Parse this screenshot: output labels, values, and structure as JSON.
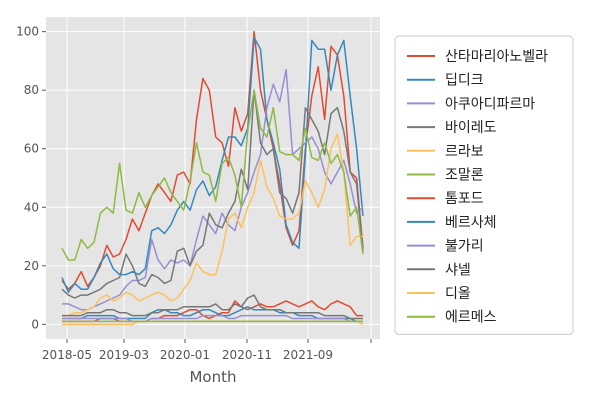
{
  "chart_data": {
    "type": "line",
    "xlabel": "Month",
    "ylabel": "",
    "ylim": [
      -5,
      105
    ],
    "yticks": [
      0,
      20,
      40,
      60,
      80,
      100
    ],
    "x_tick_labels": [
      "2018-05",
      "2019-03",
      "2020-01",
      "2020-11",
      "2021-09",
      ""
    ],
    "grid": true,
    "legend_position": "right",
    "background": "#e5e5e5",
    "x_start": "2018-05",
    "x_end": "2022-06",
    "series": [
      {
        "name": "산타마리아노벨라",
        "color": "#e24a33",
        "values": [
          15,
          12,
          14,
          18,
          13,
          16,
          20,
          27,
          23,
          24,
          29,
          36,
          32,
          38,
          44,
          48,
          45,
          42,
          51,
          52,
          48,
          70,
          84,
          80,
          64,
          62,
          54,
          74,
          66,
          72,
          100,
          80,
          70,
          60,
          48,
          33,
          27,
          32,
          60,
          78,
          88,
          70,
          95,
          92,
          78,
          52,
          50,
          26
        ]
      },
      {
        "name": "딥디크",
        "color": "#348abd",
        "values": [
          16,
          11,
          14,
          12,
          12,
          16,
          21,
          24,
          19,
          17,
          17,
          18,
          17,
          19,
          32,
          33,
          31,
          34,
          39,
          42,
          39,
          46,
          49,
          44,
          47,
          56,
          64,
          64,
          61,
          67,
          98,
          94,
          70,
          62,
          53,
          34,
          28,
          26,
          58,
          97,
          94,
          94,
          80,
          92,
          97,
          78,
          60,
          37
        ]
      },
      {
        "name": "아쿠아디파르마",
        "color": "#988ed5",
        "values": [
          7,
          7,
          6,
          5,
          5,
          6,
          7,
          8,
          9,
          10,
          13,
          15,
          15,
          16,
          29,
          22,
          19,
          22,
          21,
          22,
          20,
          29,
          37,
          34,
          31,
          38,
          34,
          32,
          40,
          45,
          52,
          58,
          74,
          82,
          76,
          87,
          58,
          60,
          62,
          64,
          60,
          52,
          48,
          52,
          56,
          48,
          38,
          40
        ]
      },
      {
        "name": "바이레도",
        "color": "#777777",
        "values": [
          12,
          10,
          9,
          10,
          10,
          11,
          12,
          14,
          15,
          16,
          24,
          20,
          14,
          13,
          17,
          16,
          14,
          15,
          25,
          26,
          20,
          25,
          27,
          38,
          34,
          33,
          38,
          42,
          53,
          46,
          80,
          62,
          58,
          60,
          45,
          43,
          38,
          45,
          74,
          70,
          66,
          58,
          72,
          74,
          66,
          52,
          48,
          25
        ]
      },
      {
        "name": "르라보",
        "color": "#fbc15e",
        "values": [
          3,
          3,
          4,
          4,
          5,
          6,
          9,
          10,
          8,
          9,
          11,
          10,
          8,
          9,
          10,
          11,
          10,
          8,
          9,
          12,
          15,
          21,
          18,
          17,
          17,
          25,
          36,
          38,
          33,
          40,
          45,
          56,
          47,
          43,
          37,
          36,
          36,
          38,
          49,
          45,
          40,
          46,
          60,
          65,
          52,
          27,
          30,
          30
        ]
      },
      {
        "name": "조말론",
        "color": "#8eba42",
        "values": [
          26,
          22,
          22,
          29,
          26,
          28,
          38,
          40,
          38,
          55,
          39,
          38,
          45,
          40,
          44,
          47,
          50,
          45,
          42,
          39,
          49,
          62,
          52,
          51,
          42,
          55,
          57,
          51,
          40,
          66,
          80,
          67,
          64,
          74,
          59,
          58,
          58,
          56,
          67,
          57,
          56,
          62,
          55,
          58,
          52,
          37,
          40,
          24
        ]
      },
      {
        "name": "톰포드",
        "color": "#e24a33",
        "values": [
          1,
          1,
          1,
          1,
          1,
          1,
          2,
          2,
          2,
          1,
          1,
          1,
          1,
          1,
          2,
          2,
          3,
          3,
          3,
          4,
          5,
          5,
          3,
          2,
          3,
          4,
          4,
          8,
          6,
          5,
          6,
          7,
          6,
          6,
          7,
          8,
          7,
          6,
          7,
          8,
          6,
          5,
          7,
          8,
          7,
          6,
          3,
          3
        ]
      },
      {
        "name": "베르사체",
        "color": "#348abd",
        "values": [
          2,
          2,
          2,
          2,
          3,
          3,
          3,
          3,
          3,
          2,
          2,
          2,
          2,
          2,
          4,
          5,
          5,
          4,
          4,
          3,
          3,
          4,
          5,
          5,
          4,
          3,
          3,
          4,
          5,
          6,
          5,
          5,
          5,
          5,
          4,
          4,
          4,
          3,
          3,
          3,
          2,
          2,
          2,
          2,
          2,
          2,
          1,
          1
        ]
      },
      {
        "name": "불가리",
        "color": "#988ed5",
        "values": [
          2,
          2,
          2,
          2,
          2,
          2,
          2,
          2,
          2,
          2,
          2,
          1,
          1,
          1,
          2,
          2,
          2,
          2,
          2,
          2,
          2,
          2,
          3,
          3,
          3,
          3,
          2,
          2,
          3,
          3,
          3,
          3,
          3,
          3,
          3,
          3,
          2,
          2,
          2,
          2,
          2,
          2,
          2,
          2,
          2,
          1,
          1,
          1
        ]
      },
      {
        "name": "샤넬",
        "color": "#777777",
        "values": [
          3,
          3,
          3,
          3,
          4,
          4,
          4,
          5,
          5,
          4,
          4,
          3,
          3,
          3,
          4,
          4,
          5,
          5,
          5,
          6,
          6,
          6,
          6,
          6,
          7,
          5,
          5,
          7,
          6,
          9,
          10,
          6,
          5,
          5,
          5,
          4,
          4,
          4,
          4,
          4,
          4,
          3,
          3,
          3,
          3,
          2,
          2,
          2
        ]
      },
      {
        "name": "디올",
        "color": "#fbc15e",
        "values": [
          0,
          0,
          0,
          0,
          0,
          0,
          0,
          0,
          0,
          0,
          0,
          0,
          1,
          1,
          1,
          1,
          1,
          1,
          1,
          1,
          1,
          1,
          1,
          1,
          1,
          1,
          1,
          1,
          1,
          1,
          1,
          1,
          1,
          1,
          1,
          1,
          1,
          1,
          1,
          1,
          1,
          1,
          1,
          1,
          1,
          1,
          1,
          0
        ]
      },
      {
        "name": "에르메스",
        "color": "#8eba42",
        "values": [
          1,
          1,
          1,
          1,
          1,
          1,
          1,
          1,
          1,
          1,
          1,
          1,
          1,
          1,
          1,
          1,
          1,
          1,
          1,
          1,
          1,
          1,
          1,
          1,
          1,
          1,
          1,
          1,
          1,
          1,
          1,
          1,
          1,
          1,
          1,
          1,
          1,
          1,
          1,
          1,
          1,
          1,
          1,
          1,
          1,
          1,
          1,
          1
        ]
      }
    ]
  }
}
